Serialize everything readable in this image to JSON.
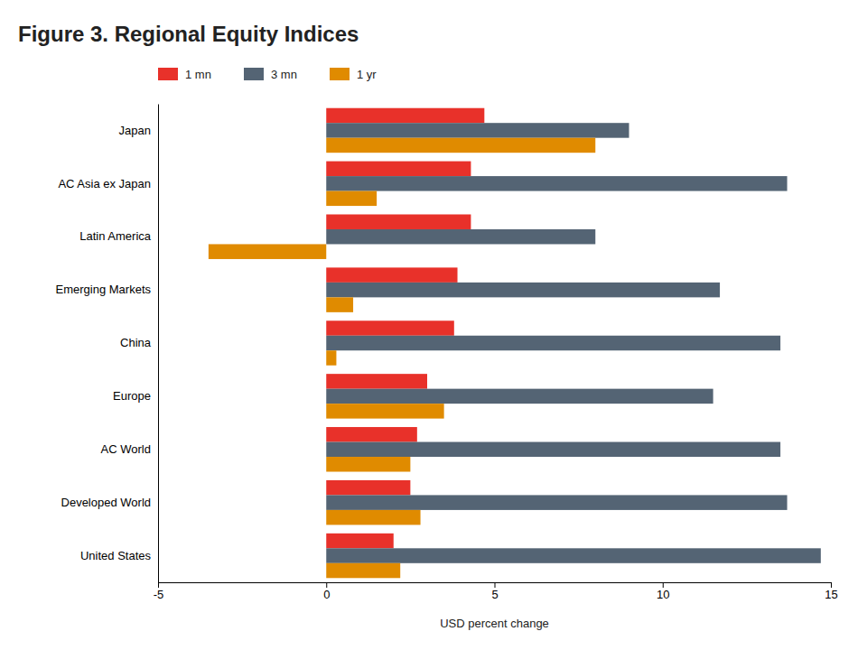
{
  "chart_data": {
    "type": "bar",
    "orientation": "horizontal",
    "title": "Figure 3. Regional Equity Indices",
    "xlabel": "USD percent change",
    "categories": [
      "United States",
      "Developed World",
      "AC World",
      "Europe",
      "China",
      "Emerging Markets",
      "Latin America",
      "AC Asia ex Japan",
      "Japan"
    ],
    "series": [
      {
        "name": "1 mn",
        "color": "#e8312a",
        "values": [
          2.0,
          2.5,
          2.7,
          3.0,
          3.8,
          3.9,
          4.3,
          4.3,
          4.7
        ]
      },
      {
        "name": "3 mn",
        "color": "#546474",
        "values": [
          14.7,
          13.7,
          13.5,
          11.5,
          13.5,
          11.7,
          8.0,
          13.7,
          9.0
        ]
      },
      {
        "name": "1 yr",
        "color": "#e08b00",
        "values": [
          2.2,
          2.8,
          2.5,
          3.5,
          0.3,
          0.8,
          -3.5,
          1.5,
          8.0
        ]
      }
    ],
    "xlim": [
      -5,
      15
    ],
    "xticks": [
      -5,
      0,
      5,
      10,
      15
    ],
    "grid": false,
    "legend": "top"
  }
}
